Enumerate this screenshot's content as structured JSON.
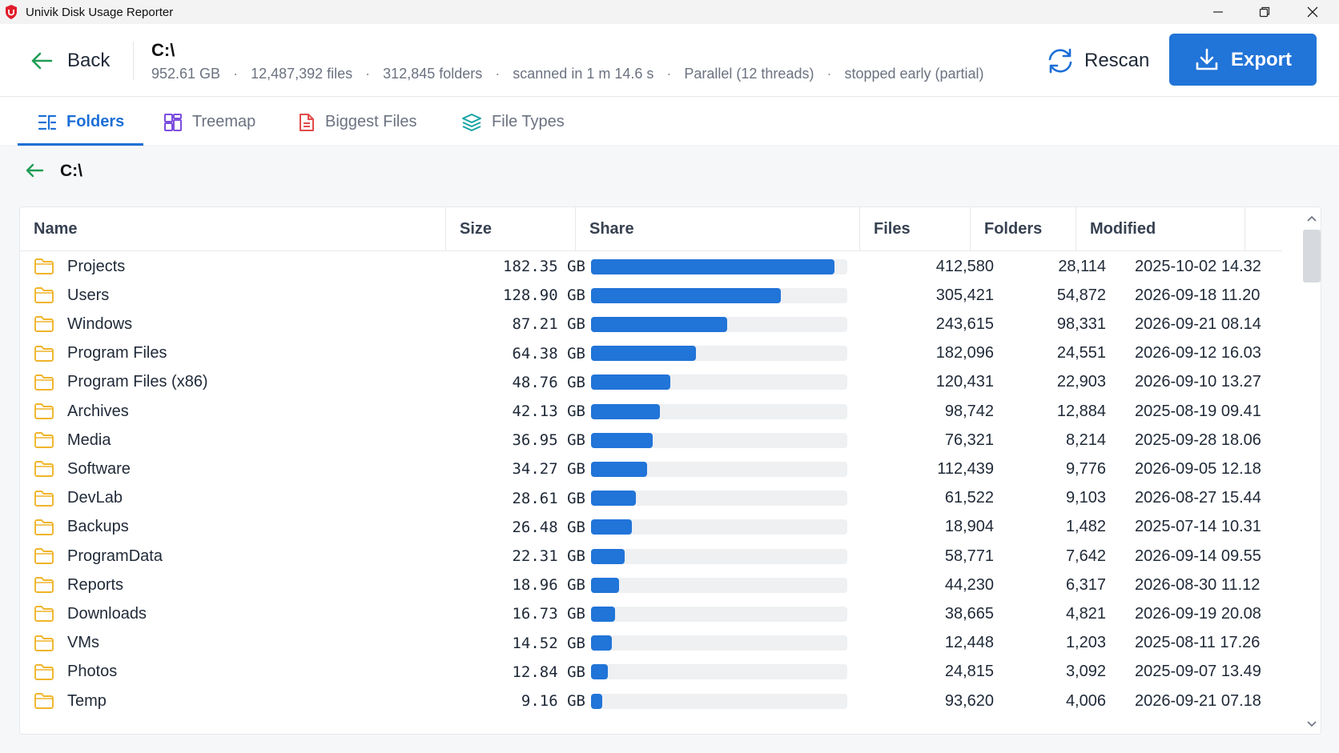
{
  "window": {
    "title": "Univik Disk Usage Reporter"
  },
  "header": {
    "back_label": "Back",
    "path": "C:\\",
    "stats": {
      "size": "952.61 GB",
      "files": "12,487,392 files",
      "folders": "312,845 folders",
      "time": "scanned in 1 m 14.6 s",
      "mode": "Parallel (12 threads)",
      "status": "stopped early (partial)"
    },
    "rescan_label": "Rescan",
    "export_label": "Export"
  },
  "tabs": [
    {
      "label": "Folders",
      "icon": "list-tree-icon",
      "active": true
    },
    {
      "label": "Treemap",
      "icon": "treemap-icon",
      "active": false
    },
    {
      "label": "Biggest Files",
      "icon": "document-icon",
      "active": false
    },
    {
      "label": "File Types",
      "icon": "layers-icon",
      "active": false
    }
  ],
  "breadcrumb": {
    "path": "C:\\"
  },
  "table": {
    "columns": [
      "Name",
      "Size",
      "Share",
      "Files",
      "Folders",
      "Modified"
    ],
    "rows": [
      {
        "name": "Projects",
        "size": "182.35 GB",
        "share": 0.95,
        "files": "412,580",
        "folders": "28,114",
        "modified": "2025-10-02 14.32"
      },
      {
        "name": "Users",
        "size": "128.90 GB",
        "share": 0.74,
        "files": "305,421",
        "folders": "54,872",
        "modified": "2026-09-18 11.20"
      },
      {
        "name": "Windows",
        "size": "87.21 GB",
        "share": 0.53,
        "files": "243,615",
        "folders": "98,331",
        "modified": "2026-09-21 08.14"
      },
      {
        "name": "Program Files",
        "size": "64.38 GB",
        "share": 0.41,
        "files": "182,096",
        "folders": "24,551",
        "modified": "2026-09-12 16.03"
      },
      {
        "name": "Program Files (x86)",
        "size": "48.76 GB",
        "share": 0.31,
        "files": "120,431",
        "folders": "22,903",
        "modified": "2026-09-10 13.27"
      },
      {
        "name": "Archives",
        "size": "42.13 GB",
        "share": 0.27,
        "files": "98,742",
        "folders": "12,884",
        "modified": "2025-08-19 09.41"
      },
      {
        "name": "Media",
        "size": "36.95 GB",
        "share": 0.24,
        "files": "76,321",
        "folders": "8,214",
        "modified": "2025-09-28 18.06"
      },
      {
        "name": "Software",
        "size": "34.27 GB",
        "share": 0.22,
        "files": "112,439",
        "folders": "9,776",
        "modified": "2026-09-05 12.18"
      },
      {
        "name": "DevLab",
        "size": "28.61 GB",
        "share": 0.175,
        "files": "61,522",
        "folders": "9,103",
        "modified": "2026-08-27 15.44"
      },
      {
        "name": "Backups",
        "size": "26.48 GB",
        "share": 0.16,
        "files": "18,904",
        "folders": "1,482",
        "modified": "2025-07-14 10.31"
      },
      {
        "name": "ProgramData",
        "size": "22.31 GB",
        "share": 0.13,
        "files": "58,771",
        "folders": "7,642",
        "modified": "2026-09-14 09.55"
      },
      {
        "name": "Reports",
        "size": "18.96 GB",
        "share": 0.11,
        "files": "44,230",
        "folders": "6,317",
        "modified": "2026-08-30 11.12"
      },
      {
        "name": "Downloads",
        "size": "16.73 GB",
        "share": 0.095,
        "files": "38,665",
        "folders": "4,821",
        "modified": "2026-09-19 20.08"
      },
      {
        "name": "VMs",
        "size": "14.52 GB",
        "share": 0.08,
        "files": "12,448",
        "folders": "1,203",
        "modified": "2025-08-11 17.26"
      },
      {
        "name": "Photos",
        "size": "12.84 GB",
        "share": 0.065,
        "files": "24,815",
        "folders": "3,092",
        "modified": "2025-09-07 13.49"
      },
      {
        "name": "Temp",
        "size": "9.16 GB",
        "share": 0.045,
        "files": "93,620",
        "folders": "4,006",
        "modified": "2026-09-21 07.18"
      }
    ]
  },
  "colors": {
    "accent": "#1c6fd6",
    "bar": "#2174d8",
    "folder": "#f0b429"
  }
}
